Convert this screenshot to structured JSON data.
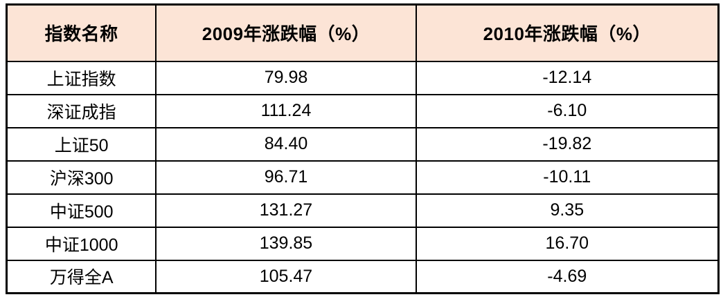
{
  "table": {
    "header": {
      "bg_color": "#FCE4D6",
      "border_color": "#000000",
      "columns": [
        "指数名称",
        "2009年涨跌幅（%）",
        "2010年涨跌幅（%）"
      ]
    },
    "rows": [
      {
        "index_name": "上证指数",
        "chg_2009": "79.98",
        "chg_2010": "-12.14"
      },
      {
        "index_name": "深证成指",
        "chg_2009": "111.24",
        "chg_2010": "-6.10"
      },
      {
        "index_name": "上证50",
        "chg_2009": "84.40",
        "chg_2010": "-19.82"
      },
      {
        "index_name": "沪深300",
        "chg_2009": "96.71",
        "chg_2010": "-10.11"
      },
      {
        "index_name": "中证500",
        "chg_2009": "131.27",
        "chg_2010": "9.35"
      },
      {
        "index_name": "中证1000",
        "chg_2009": "139.85",
        "chg_2010": "16.70"
      },
      {
        "index_name": "万得全A",
        "chg_2009": "105.47",
        "chg_2010": "-4.69"
      }
    ]
  },
  "chart_data": {
    "type": "table",
    "title": "",
    "columns": [
      "指数名称",
      "2009年涨跌幅（%）",
      "2010年涨跌幅（%）"
    ],
    "rows": [
      [
        "上证指数",
        79.98,
        -12.14
      ],
      [
        "深证成指",
        111.24,
        -6.1
      ],
      [
        "上证50",
        84.4,
        -19.82
      ],
      [
        "沪深300",
        96.71,
        -10.11
      ],
      [
        "中证500",
        131.27,
        9.35
      ],
      [
        "中证1000",
        139.85,
        16.7
      ],
      [
        "万得全A",
        105.47,
        -4.69
      ]
    ],
    "layout_hints": {
      "header_background": "#FCE4D6",
      "grid": "all-borders-black",
      "alignment": "center"
    }
  }
}
